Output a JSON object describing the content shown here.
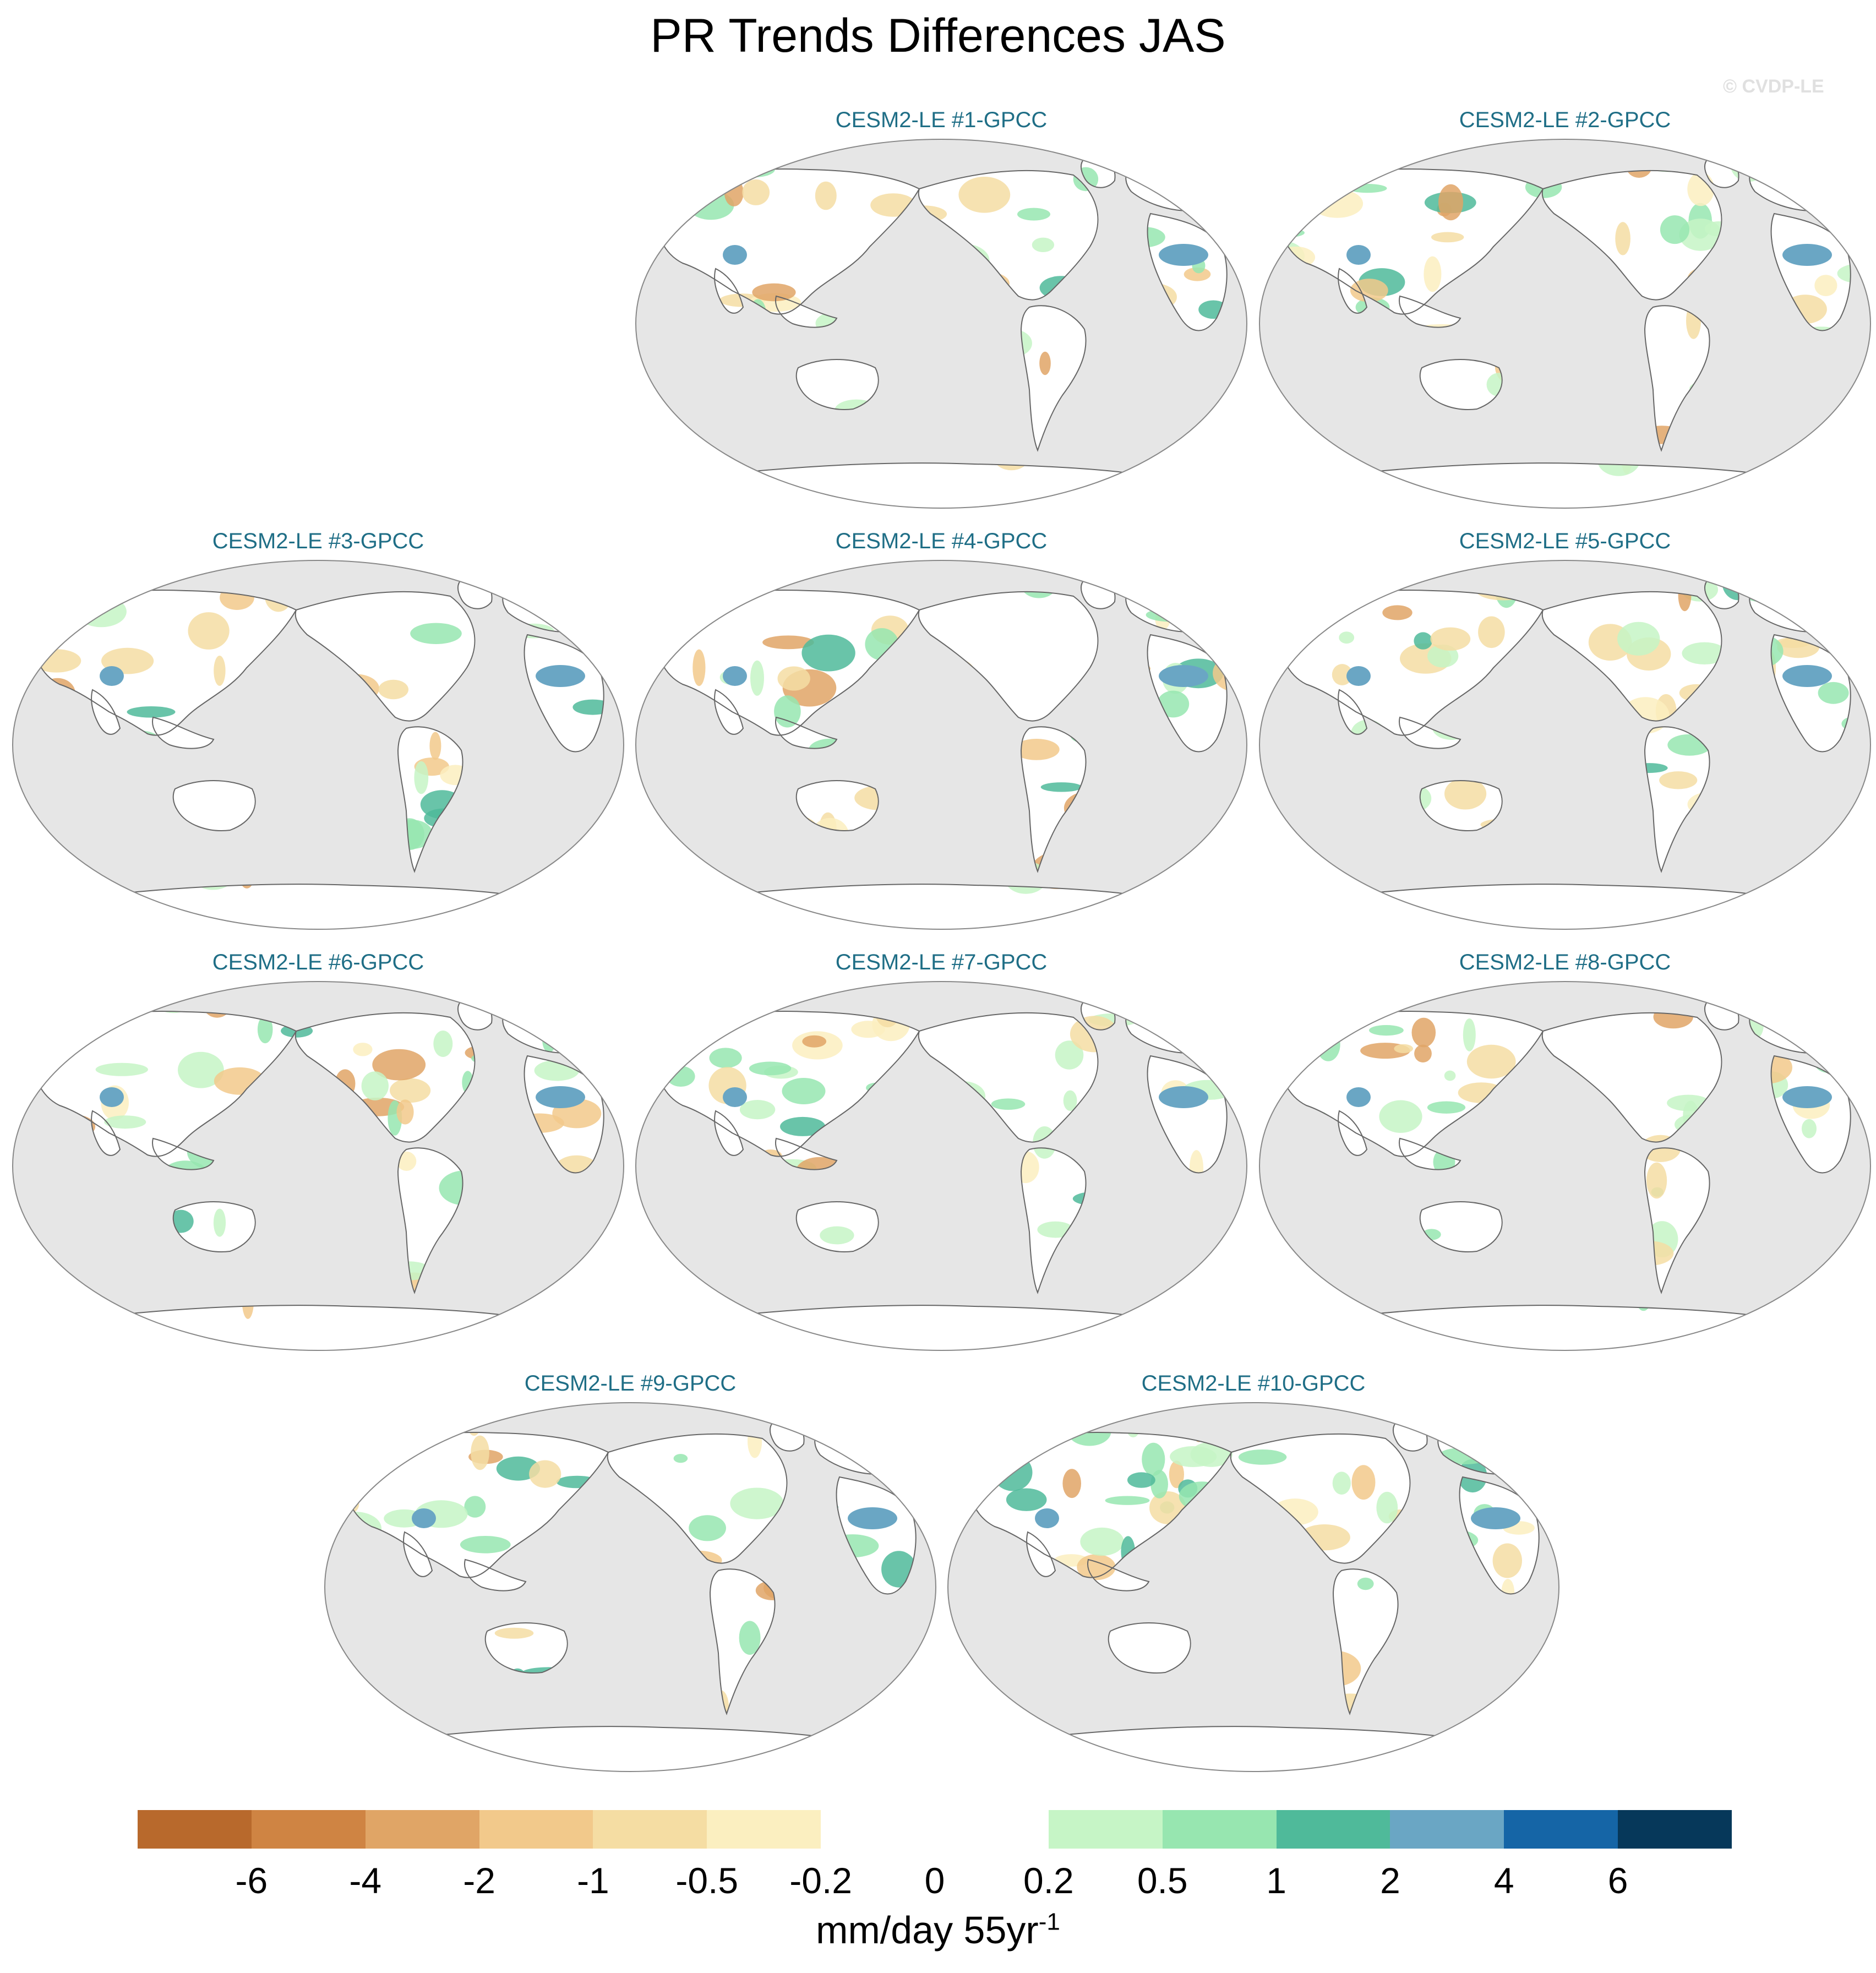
{
  "title": "PR Trends Differences JAS",
  "watermark": "© CVDP-LE",
  "panels": [
    {
      "title": "CESM2-LE #1-GPCC"
    },
    {
      "title": "CESM2-LE #2-GPCC"
    },
    {
      "title": "CESM2-LE #3-GPCC"
    },
    {
      "title": "CESM2-LE #4-GPCC"
    },
    {
      "title": "CESM2-LE #5-GPCC"
    },
    {
      "title": "CESM2-LE #6-GPCC"
    },
    {
      "title": "CESM2-LE #7-GPCC"
    },
    {
      "title": "CESM2-LE #8-GPCC"
    },
    {
      "title": "CESM2-LE #9-GPCC"
    },
    {
      "title": "CESM2-LE #10-GPCC"
    }
  ],
  "colorbar": {
    "labels": [
      "-6",
      "-4",
      "-2",
      "-1",
      "-0.5",
      "-0.2",
      "0",
      "0.2",
      "0.5",
      "1",
      "2",
      "4",
      "6"
    ],
    "colors": [
      "#b8692c",
      "#cf8443",
      "#e0a566",
      "#f2c98b",
      "#f5dda3",
      "#fbefc0",
      "#ffffff",
      "#ffffff",
      "#c6f5c6",
      "#97e6b0",
      "#4fba9a",
      "#6aa6c4",
      "#1565a6",
      "#06385a"
    ],
    "units_main": "mm/day 55yr",
    "units_exp": "-1"
  },
  "colors": {
    "ocean": "#e6e6e6",
    "land": "#ffffff",
    "coast": "#666666",
    "panel_title": "#1f6e86"
  }
}
